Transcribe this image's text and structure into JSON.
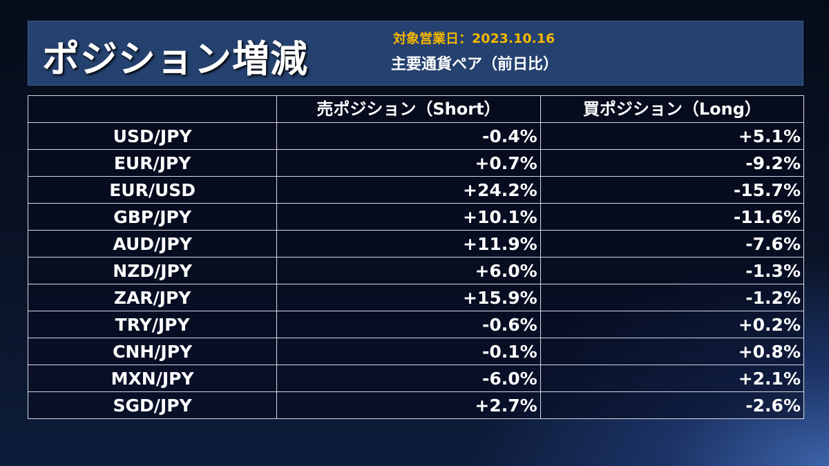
{
  "header": {
    "title": "ポジション増減",
    "date_label": "対象営業日：",
    "date": "2023.10.16",
    "subtitle": "主要通貨ペア（前日比）"
  },
  "table": {
    "columns": [
      "",
      "売ポジション（Short）",
      "買ポジション（Long）"
    ],
    "rows": [
      {
        "pair": "USD/JPY",
        "short": "-0.4%",
        "long": "+5.1%"
      },
      {
        "pair": "EUR/JPY",
        "short": "+0.7%",
        "long": "-9.2%"
      },
      {
        "pair": "EUR/USD",
        "short": "+24.2%",
        "long": "-15.7%"
      },
      {
        "pair": "GBP/JPY",
        "short": "+10.1%",
        "long": "-11.6%"
      },
      {
        "pair": "AUD/JPY",
        "short": "+11.9%",
        "long": "-7.6%"
      },
      {
        "pair": "NZD/JPY",
        "short": "+6.0%",
        "long": "-1.3%"
      },
      {
        "pair": "ZAR/JPY",
        "short": "+15.9%",
        "long": "-1.2%"
      },
      {
        "pair": "TRY/JPY",
        "short": "-0.6%",
        "long": "+0.2%"
      },
      {
        "pair": "CNH/JPY",
        "short": "-0.1%",
        "long": "+0.8%"
      },
      {
        "pair": "MXN/JPY",
        "short": "-6.0%",
        "long": "+2.1%"
      },
      {
        "pair": "SGD/JPY",
        "short": "+2.7%",
        "long": "-2.6%"
      }
    ]
  },
  "colors": {
    "banner": "#25416f",
    "date": "#f5b700"
  }
}
